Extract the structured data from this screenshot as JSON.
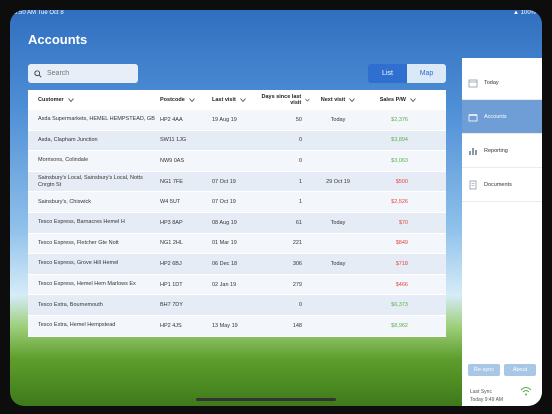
{
  "status_bar": {
    "time": "9:50 AM  Tue Oct 8",
    "battery": "100%"
  },
  "page": {
    "title": "Accounts"
  },
  "search": {
    "placeholder": "Search"
  },
  "view_toggle": {
    "list": "List",
    "map": "Map"
  },
  "table": {
    "headers": [
      "Customer",
      "Postcode",
      "Last visit",
      "Days since last visit",
      "Next visit",
      "Sales P/W"
    ],
    "rows": [
      {
        "customer": "Asda Supermarkets, HEMEL HEMPSTEAD, GB",
        "postcode": "HP2 4AA",
        "last_visit": "19 Aug 19",
        "days": "50",
        "next_visit": "Today",
        "sales": "$2,376",
        "positive": true
      },
      {
        "customer": "Asda, Clapham Junction",
        "postcode": "SW11 1JG",
        "last_visit": "",
        "days": "0",
        "next_visit": "",
        "sales": "$3,894",
        "positive": true
      },
      {
        "customer": "Morrisons, Colindale",
        "postcode": "NW9 0AS",
        "last_visit": "",
        "days": "0",
        "next_visit": "",
        "sales": "$3,063",
        "positive": true
      },
      {
        "customer": "Sainsbury's Local, Sainsbury's Local, Notts Cnrgtn St",
        "postcode": "NG1 7FE",
        "last_visit": "07 Oct 19",
        "days": "1",
        "next_visit": "29 Oct 19",
        "sales": "$500",
        "positive": false
      },
      {
        "customer": "Sainsbury's, Chiswick",
        "postcode": "W4 5UT",
        "last_visit": "07 Oct 19",
        "days": "1",
        "next_visit": "",
        "sales": "$2,526",
        "positive": false
      },
      {
        "customer": "Tesco Express, Barnacres Hemel H",
        "postcode": "HP3 8AP",
        "last_visit": "08 Aug 19",
        "days": "61",
        "next_visit": "Today",
        "sales": "$70",
        "positive": false
      },
      {
        "customer": "Tesco Express, Fletcher Gte Nott",
        "postcode": "NG1 2HL",
        "last_visit": "01 Mar 19",
        "days": "221",
        "next_visit": "",
        "sales": "$849",
        "positive": false
      },
      {
        "customer": "Tesco Express, Grove Hill Hemel",
        "postcode": "HP2 6BJ",
        "last_visit": "06 Dec 18",
        "days": "306",
        "next_visit": "Today",
        "sales": "$718",
        "positive": false
      },
      {
        "customer": "Tesco Express, Hemel Hem Marlows Ex",
        "postcode": "HP1 1DT",
        "last_visit": "02 Jan 19",
        "days": "279",
        "next_visit": "",
        "sales": "$466",
        "positive": false
      },
      {
        "customer": "Tesco Extra, Bournemouth",
        "postcode": "BH7 7DY",
        "last_visit": "",
        "days": "0",
        "next_visit": "",
        "sales": "$6,373",
        "positive": true
      },
      {
        "customer": "Tesco Extra, Hemel Hempstead",
        "postcode": "HP2 4JS",
        "last_visit": "13 May 19",
        "days": "148",
        "next_visit": "",
        "sales": "$8,962",
        "positive": true
      }
    ]
  },
  "sidebar": {
    "items": [
      {
        "label": "Today",
        "icon": "calendar-icon"
      },
      {
        "label": "Accounts",
        "icon": "store-icon"
      },
      {
        "label": "Reporting",
        "icon": "bar-chart-icon"
      },
      {
        "label": "Documents",
        "icon": "document-icon"
      }
    ],
    "resync": "Re-sync",
    "about": "About",
    "last_sync_label": "Last Sync",
    "last_sync_value": "Today 9:49 AM"
  },
  "colors": {
    "accent": "#2e6fcf",
    "positive": "#5bb04d",
    "negative": "#e2483d"
  }
}
